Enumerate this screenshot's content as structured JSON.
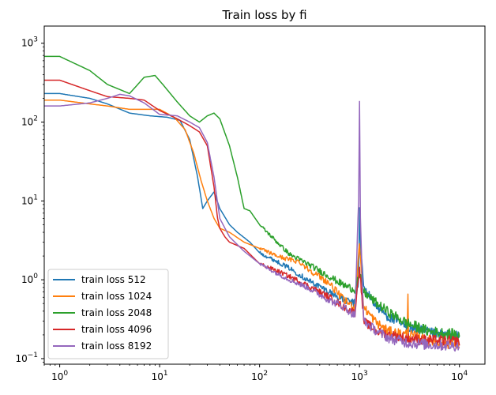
{
  "chart_data": {
    "type": "line",
    "title": "Train loss by fi",
    "xlabel": "",
    "ylabel": "",
    "xscale": "log",
    "yscale": "log",
    "xlim": [
      0.7,
      18000
    ],
    "ylim": [
      0.085,
      1650
    ],
    "x_ticks": [
      {
        "value": 1,
        "base": "10",
        "exp": "0"
      },
      {
        "value": 10,
        "base": "10",
        "exp": "1"
      },
      {
        "value": 100,
        "base": "10",
        "exp": "2"
      },
      {
        "value": 1000,
        "base": "10",
        "exp": "3"
      },
      {
        "value": 10000,
        "base": "10",
        "exp": "4"
      }
    ],
    "y_ticks": [
      {
        "value": 0.1,
        "base": "10",
        "exp": "−1"
      },
      {
        "value": 1,
        "base": "10",
        "exp": "0"
      },
      {
        "value": 10,
        "base": "10",
        "exp": "1"
      },
      {
        "value": 100,
        "base": "10",
        "exp": "2"
      },
      {
        "value": 1000,
        "base": "10",
        "exp": "3"
      }
    ],
    "grid": false,
    "legend_position": "lower-left",
    "series": [
      {
        "name": "train loss 512",
        "color": "#1f77b4",
        "points": [
          [
            0.7,
            230
          ],
          [
            1,
            230
          ],
          [
            2,
            200
          ],
          [
            3,
            170
          ],
          [
            5,
            130
          ],
          [
            8,
            120
          ],
          [
            12,
            115
          ],
          [
            16,
            105
          ],
          [
            20,
            60
          ],
          [
            24,
            20
          ],
          [
            27,
            8
          ],
          [
            30,
            10
          ],
          [
            35,
            13
          ],
          [
            40,
            8
          ],
          [
            50,
            5
          ],
          [
            60,
            4
          ],
          [
            80,
            3
          ],
          [
            100,
            2.2
          ],
          [
            150,
            1.7
          ],
          [
            200,
            1.4
          ],
          [
            300,
            1.0
          ],
          [
            500,
            0.7
          ],
          [
            700,
            0.55
          ],
          [
            900,
            0.5
          ],
          [
            980,
            1.0
          ],
          [
            1000,
            7.5
          ],
          [
            1020,
            3.0
          ],
          [
            1100,
            0.8
          ],
          [
            1500,
            0.45
          ],
          [
            2000,
            0.33
          ],
          [
            3000,
            0.25
          ],
          [
            5000,
            0.21
          ],
          [
            10000,
            0.19
          ]
        ]
      },
      {
        "name": "train loss 1024",
        "color": "#ff7f0e",
        "points": [
          [
            0.7,
            190
          ],
          [
            1,
            190
          ],
          [
            2,
            170
          ],
          [
            3,
            160
          ],
          [
            5,
            145
          ],
          [
            8,
            145
          ],
          [
            10,
            145
          ],
          [
            14,
            115
          ],
          [
            18,
            80
          ],
          [
            22,
            40
          ],
          [
            26,
            18
          ],
          [
            30,
            10
          ],
          [
            35,
            6
          ],
          [
            40,
            4.5
          ],
          [
            50,
            4
          ],
          [
            70,
            3
          ],
          [
            100,
            2.5
          ],
          [
            150,
            2.0
          ],
          [
            200,
            1.8
          ],
          [
            250,
            1.7
          ],
          [
            300,
            1.4
          ],
          [
            500,
            0.9
          ],
          [
            700,
            0.55
          ],
          [
            900,
            0.45
          ],
          [
            1000,
            3.0
          ],
          [
            1100,
            0.45
          ],
          [
            1500,
            0.28
          ],
          [
            2000,
            0.22
          ],
          [
            3000,
            0.2
          ],
          [
            3050,
            0.7
          ],
          [
            3100,
            0.2
          ],
          [
            5000,
            0.17
          ],
          [
            10000,
            0.15
          ]
        ]
      },
      {
        "name": "train loss 2048",
        "color": "#2ca02c",
        "points": [
          [
            0.7,
            680
          ],
          [
            1,
            680
          ],
          [
            2,
            450
          ],
          [
            3,
            300
          ],
          [
            5,
            230
          ],
          [
            7,
            370
          ],
          [
            9,
            390
          ],
          [
            11,
            290
          ],
          [
            15,
            180
          ],
          [
            20,
            120
          ],
          [
            25,
            100
          ],
          [
            30,
            120
          ],
          [
            35,
            130
          ],
          [
            40,
            110
          ],
          [
            50,
            50
          ],
          [
            60,
            20
          ],
          [
            70,
            8
          ],
          [
            80,
            7.5
          ],
          [
            100,
            5
          ],
          [
            150,
            3
          ],
          [
            200,
            2.1
          ],
          [
            300,
            1.6
          ],
          [
            500,
            1.1
          ],
          [
            700,
            0.85
          ],
          [
            900,
            0.75
          ],
          [
            1000,
            1.2
          ],
          [
            1100,
            0.7
          ],
          [
            1500,
            0.5
          ],
          [
            2000,
            0.38
          ],
          [
            3000,
            0.28
          ],
          [
            5000,
            0.22
          ],
          [
            10000,
            0.2
          ]
        ]
      },
      {
        "name": "train loss 4096",
        "color": "#d62728",
        "points": [
          [
            0.7,
            340
          ],
          [
            1,
            340
          ],
          [
            2,
            250
          ],
          [
            3,
            210
          ],
          [
            5,
            200
          ],
          [
            7,
            190
          ],
          [
            10,
            140
          ],
          [
            15,
            110
          ],
          [
            20,
            90
          ],
          [
            25,
            75
          ],
          [
            30,
            50
          ],
          [
            35,
            15
          ],
          [
            38,
            6
          ],
          [
            40,
            4.5
          ],
          [
            45,
            3.5
          ],
          [
            50,
            3.0
          ],
          [
            70,
            2.5
          ],
          [
            100,
            1.6
          ],
          [
            150,
            1.3
          ],
          [
            200,
            1.1
          ],
          [
            300,
            0.85
          ],
          [
            500,
            0.6
          ],
          [
            700,
            0.45
          ],
          [
            900,
            0.38
          ],
          [
            1000,
            1.5
          ],
          [
            1100,
            0.3
          ],
          [
            1500,
            0.22
          ],
          [
            2000,
            0.2
          ],
          [
            3000,
            0.18
          ],
          [
            5000,
            0.17
          ],
          [
            10000,
            0.165
          ]
        ]
      },
      {
        "name": "train loss 8192",
        "color": "#9467bd",
        "points": [
          [
            0.7,
            160
          ],
          [
            1,
            160
          ],
          [
            2,
            175
          ],
          [
            3,
            200
          ],
          [
            4,
            225
          ],
          [
            5,
            215
          ],
          [
            7,
            175
          ],
          [
            10,
            125
          ],
          [
            15,
            120
          ],
          [
            20,
            100
          ],
          [
            25,
            85
          ],
          [
            30,
            55
          ],
          [
            35,
            20
          ],
          [
            40,
            6
          ],
          [
            50,
            3.5
          ],
          [
            70,
            2.3
          ],
          [
            100,
            1.6
          ],
          [
            150,
            1.2
          ],
          [
            200,
            1.0
          ],
          [
            300,
            0.8
          ],
          [
            500,
            0.55
          ],
          [
            700,
            0.45
          ],
          [
            900,
            0.35
          ],
          [
            980,
            10
          ],
          [
            1000,
            170
          ],
          [
            1020,
            6
          ],
          [
            1100,
            0.3
          ],
          [
            1500,
            0.22
          ],
          [
            2000,
            0.18
          ],
          [
            3000,
            0.16
          ],
          [
            5000,
            0.15
          ],
          [
            10000,
            0.145
          ]
        ]
      }
    ]
  }
}
